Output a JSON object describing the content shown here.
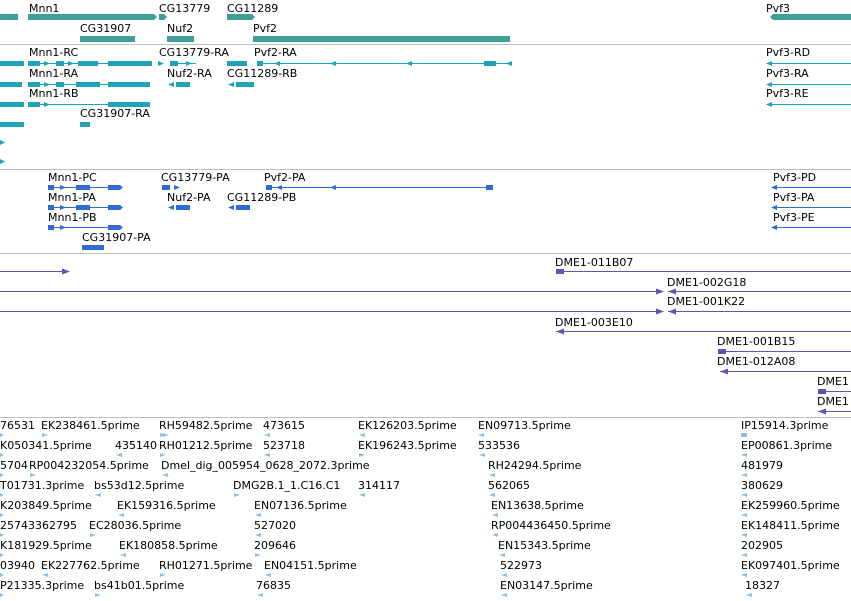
{
  "colors": {
    "gene": "#3e9e98",
    "transcript": "#1ea3b8",
    "protein": "#2f6ad6",
    "clone": "#6a4fb3",
    "est": "#8fbfe6",
    "separator": "#bfbfbf"
  },
  "gene_track": {
    "labels": [
      "Mnn1",
      "CG13779",
      "CG11289",
      "Pvf3",
      "CG31907",
      "Nuf2",
      "Pvf2"
    ]
  },
  "transcript_track": {
    "labels": [
      "Mnn1-RC",
      "CG13779-RA",
      "Pvf2-RA",
      "Pvf3-RD",
      "Mnn1-RA",
      "Nuf2-RA",
      "CG11289-RB",
      "Pvf3-RA",
      "Mnn1-RB",
      "Pvf3-RE",
      "CG31907-RA"
    ]
  },
  "protein_track": {
    "labels": [
      "Mnn1-PC",
      "CG13779-PA",
      "Pvf2-PA",
      "Pvf3-PD",
      "Mnn1-PA",
      "Nuf2-PA",
      "CG11289-PB",
      "Pvf3-PA",
      "Mnn1-PB",
      "Pvf3-PE",
      "CG31907-PA"
    ]
  },
  "clone_track": {
    "labels": [
      "DME1-011B07",
      "DME1-002G18",
      "DME1-001K22",
      "DME1-003E10",
      "DME1-001B15",
      "DME1-012A08",
      "DME1",
      "DME1"
    ]
  },
  "est_track": {
    "labels": [
      "76531",
      "EK238461.5prime",
      "RH59482.5prime",
      "473615",
      "EK126203.5prime",
      "EN09713.5prime",
      "IP15914.3prime",
      "K050341.5prime",
      "435140",
      "RH01212.5prime",
      "523718",
      "EK196243.5prime",
      "533536",
      "EP00861.3prime",
      "5704",
      "RP004232054.5prime",
      "Dmel_dig_005954_0628_2072.3prime",
      "481979",
      "T01731.3prime",
      "bs53d12.5prime",
      "DMG2B.1_1.C16.C1",
      "314117",
      "RH24294.5prime",
      "380629",
      "K203849.5prime",
      "EK159316.5prime",
      "EN07136.5prime",
      "562065",
      "EK259960.5prime",
      "25743362795",
      "EC28036.5prime",
      "527020",
      "EN13638.5prime",
      "EK148411.5prime",
      "K181929.5prime",
      "EK180858.5prime",
      "209646",
      "RP004436450.5prime",
      "202905",
      "03940",
      "EK227762.5prime",
      "RH01271.5prime",
      "EN04151.5prime",
      "EN15343.5prime",
      "EK097401.5prime",
      "P21335.3prime",
      "bs41b01.5prime",
      "76835",
      "522973",
      "EN03147.5prime",
      "18327"
    ]
  }
}
